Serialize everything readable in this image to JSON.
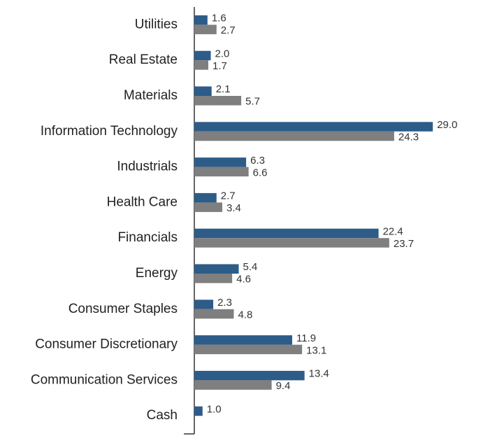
{
  "chart_data": {
    "type": "hbar",
    "categories": [
      "Utilities",
      "Real Estate",
      "Materials",
      "Information Technology",
      "Industrials",
      "Health Care",
      "Financials",
      "Energy",
      "Consumer Staples",
      "Consumer Discretionary",
      "Communication Services",
      "Cash"
    ],
    "series": [
      {
        "color": "#2d5c88",
        "values": [
          1.6,
          2.0,
          2.1,
          29.0,
          6.3,
          2.7,
          22.4,
          5.4,
          2.3,
          11.9,
          13.4,
          1.0
        ]
      },
      {
        "color": "#7f7f7f",
        "values": [
          2.7,
          1.7,
          5.7,
          24.3,
          6.6,
          3.4,
          23.7,
          4.6,
          4.8,
          13.1,
          9.4,
          null
        ]
      }
    ],
    "xlim": [
      0,
      30
    ]
  }
}
